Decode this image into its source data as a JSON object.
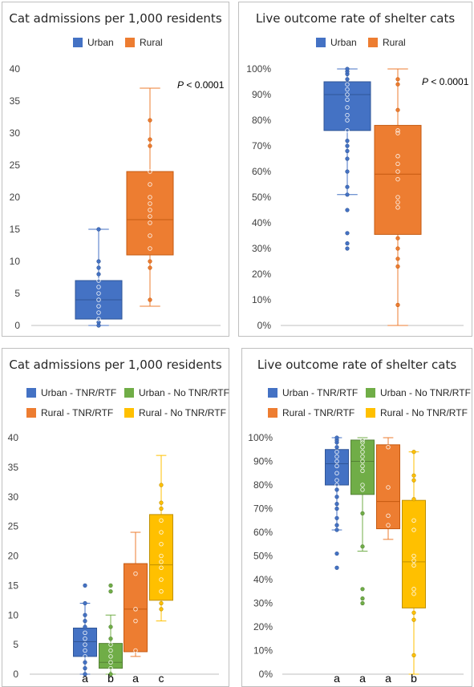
{
  "colors": {
    "urban": "#4472C4",
    "urban_edge": "#2F5597",
    "rural": "#ED7D31",
    "rural_edge": "#C55A11",
    "urban_no": "#70AD47",
    "urban_no_edge": "#548235",
    "rural_no": "#FFC000",
    "rural_no_edge": "#BF9000"
  },
  "panels": {
    "p1": {
      "title": "Cat admissions per 1,000 residents",
      "legend": [
        "Urban",
        "Rural"
      ],
      "p_italic": "P",
      "p_rest": " < 0.0001"
    },
    "p2": {
      "title": "Live outcome rate of shelter cats",
      "legend": [
        "Urban",
        "Rural"
      ],
      "p_italic": "P",
      "p_rest": " < 0.0001"
    },
    "p3": {
      "title": "Cat admissions per 1,000 residents",
      "legend": [
        "Urban - TNR/RTF",
        "Urban - No TNR/RTF",
        "Rural - TNR/RTF",
        "Rural - No TNR/RTF"
      ]
    },
    "p4": {
      "title": "Live outcome rate of shelter cats",
      "legend": [
        "Urban - TNR/RTF",
        "Urban - No TNR/RTF",
        "Rural - TNR/RTF",
        "Rural - No TNR/RTF"
      ]
    }
  },
  "chart_data": [
    {
      "type": "box",
      "title": "Cat admissions per 1,000 residents",
      "ylim": [
        0,
        40
      ],
      "ytick_labels": [
        "0",
        "5",
        "10",
        "15",
        "20",
        "25",
        "30",
        "35",
        "40"
      ],
      "legend": "top",
      "annotation": "P < 0.0001",
      "series": [
        {
          "name": "Urban",
          "color": "urban",
          "min": 0,
          "q1": 1,
          "median": 4,
          "q3": 7,
          "max": 15,
          "points": [
            0,
            0.5,
            1,
            2,
            3,
            4,
            5,
            6,
            7,
            8,
            9,
            10,
            15
          ]
        },
        {
          "name": "Rural",
          "color": "rural",
          "min": 3,
          "q1": 11,
          "median": 16.5,
          "q3": 24,
          "max": 37,
          "points": [
            4,
            9,
            10,
            12,
            14,
            16,
            17,
            18,
            19,
            20,
            22,
            24,
            28,
            29,
            32
          ]
        }
      ]
    },
    {
      "type": "box",
      "title": "Live outcome rate of shelter cats",
      "ylim": [
        0,
        100
      ],
      "ytick_labels": [
        "0%",
        "10%",
        "20%",
        "30%",
        "40%",
        "50%",
        "60%",
        "70%",
        "80%",
        "90%",
        "100%"
      ],
      "legend": "top",
      "annotation": "P < 0.0001",
      "series": [
        {
          "name": "Urban",
          "color": "urban",
          "min": 51,
          "q1": 76,
          "median": 90,
          "q3": 95,
          "max": 100,
          "points": [
            30,
            32,
            36,
            45,
            51,
            54,
            60,
            65,
            68,
            70,
            72,
            76,
            80,
            82,
            85,
            88,
            90,
            92,
            94,
            96,
            98,
            99,
            100
          ]
        },
        {
          "name": "Rural",
          "color": "rural",
          "min": 0,
          "q1": 35.5,
          "median": 59,
          "q3": 78,
          "max": 100,
          "points": [
            8,
            23,
            26,
            30,
            34,
            46,
            48,
            50,
            57,
            60,
            63,
            66,
            75,
            76,
            84,
            94,
            96
          ]
        }
      ]
    },
    {
      "type": "box",
      "title": "Cat admissions per 1,000 residents",
      "ylim": [
        0,
        40
      ],
      "ytick_labels": [
        "0",
        "5",
        "10",
        "15",
        "20",
        "25",
        "30",
        "35",
        "40"
      ],
      "legend": "top",
      "x_group_labels": [
        "a",
        "b",
        "a",
        "c"
      ],
      "series": [
        {
          "name": "Urban - TNR/RTF",
          "color": "urban",
          "min": 0,
          "q1": 3,
          "median": 5.5,
          "q3": 7.8,
          "max": 12,
          "points": [
            0,
            1,
            2,
            3,
            4,
            5,
            6,
            7,
            8,
            9,
            10,
            12,
            15
          ]
        },
        {
          "name": "Urban - No TNR/RTF",
          "color": "urban_no",
          "min": 0,
          "q1": 1,
          "median": 2,
          "q3": 5.2,
          "max": 10,
          "points": [
            0,
            1,
            2,
            3,
            4,
            5,
            6,
            8,
            14,
            15
          ]
        },
        {
          "name": "Rural - TNR/RTF",
          "color": "rural",
          "min": 3,
          "q1": 3.8,
          "median": 11,
          "q3": 18.7,
          "max": 24,
          "points": [
            4,
            9,
            11,
            17
          ]
        },
        {
          "name": "Rural - No TNR/RTF",
          "color": "rural_no",
          "min": 9,
          "q1": 12.5,
          "median": 18.5,
          "q3": 27,
          "max": 37,
          "points": [
            11,
            12,
            14,
            16,
            18,
            19,
            20,
            22,
            24,
            26,
            28,
            29,
            32
          ]
        }
      ]
    },
    {
      "type": "box",
      "title": "Live outcome rate of shelter cats",
      "ylim": [
        0,
        100
      ],
      "ytick_labels": [
        "0%",
        "10%",
        "20%",
        "30%",
        "40%",
        "50%",
        "60%",
        "70%",
        "80%",
        "90%",
        "100%"
      ],
      "legend": "top",
      "x_group_labels": [
        "a",
        "a",
        "a",
        "b"
      ],
      "series": [
        {
          "name": "Urban - TNR/RTF",
          "color": "urban",
          "min": 61,
          "q1": 80,
          "median": 89,
          "q3": 95,
          "max": 100,
          "points": [
            45,
            51,
            61,
            63,
            66,
            70,
            72,
            75,
            78,
            80,
            82,
            85,
            88,
            90,
            92,
            94,
            96,
            98,
            99,
            100
          ]
        },
        {
          "name": "Urban - No TNR/RTF",
          "color": "urban_no",
          "min": 52,
          "q1": 76,
          "median": 90,
          "q3": 99,
          "max": 100,
          "points": [
            30,
            32,
            36,
            54,
            68,
            78,
            80,
            86,
            88,
            90,
            92,
            94,
            96,
            98,
            99
          ]
        },
        {
          "name": "Rural - TNR/RTF",
          "color": "rural",
          "min": 57,
          "q1": 61.5,
          "median": 73,
          "q3": 97,
          "max": 100,
          "points": [
            63,
            67,
            79,
            96
          ]
        },
        {
          "name": "Rural - No TNR/RTF",
          "color": "rural_no",
          "min": 0,
          "q1": 28,
          "median": 47.5,
          "q3": 73.5,
          "max": 94,
          "points": [
            8,
            23,
            26,
            34,
            36,
            46,
            48,
            50,
            61,
            65,
            74,
            82,
            84,
            94
          ]
        }
      ]
    }
  ]
}
